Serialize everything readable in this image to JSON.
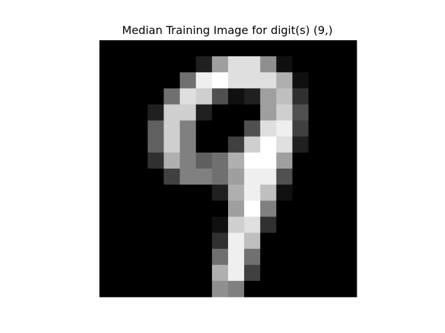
{
  "chart_data": {
    "type": "heatmap",
    "title": "Median Training Image for digit(s) (9,)",
    "colormap": "gray",
    "value_range": [
      0,
      16
    ],
    "rows": 16,
    "cols": 16,
    "values": [
      [
        0,
        0,
        0,
        0,
        0,
        0,
        0,
        0,
        0,
        0,
        0,
        0,
        0,
        0,
        0,
        0
      ],
      [
        0,
        0,
        0,
        0,
        0,
        0,
        2,
        10,
        14,
        14,
        9,
        1,
        0,
        0,
        0,
        0
      ],
      [
        0,
        0,
        0,
        0,
        0,
        7,
        15,
        16,
        14,
        14,
        14,
        11,
        1,
        0,
        0,
        0
      ],
      [
        0,
        0,
        0,
        0,
        7,
        14,
        13,
        5,
        1,
        2,
        10,
        12,
        3,
        0,
        0,
        0
      ],
      [
        0,
        0,
        0,
        2,
        13,
        13,
        2,
        0,
        0,
        0,
        10,
        13,
        5,
        0,
        0,
        0
      ],
      [
        0,
        0,
        0,
        6,
        13,
        8,
        0,
        0,
        0,
        5,
        14,
        15,
        4,
        0,
        0,
        0
      ],
      [
        0,
        0,
        0,
        6,
        13,
        8,
        0,
        0,
        4,
        13,
        16,
        14,
        2,
        0,
        0,
        0
      ],
      [
        0,
        0,
        0,
        3,
        11,
        8,
        6,
        7,
        11,
        16,
        16,
        10,
        0,
        0,
        0,
        0
      ],
      [
        0,
        0,
        0,
        0,
        4,
        8,
        8,
        7,
        10,
        15,
        15,
        5,
        0,
        0,
        0,
        0
      ],
      [
        0,
        0,
        0,
        0,
        0,
        0,
        0,
        2,
        11,
        15,
        12,
        1,
        0,
        0,
        0,
        0
      ],
      [
        0,
        0,
        0,
        0,
        0,
        0,
        0,
        0,
        10,
        16,
        8,
        0,
        0,
        0,
        0,
        0
      ],
      [
        0,
        0,
        0,
        0,
        0,
        0,
        0,
        1,
        13,
        14,
        3,
        0,
        0,
        0,
        0,
        0
      ],
      [
        0,
        0,
        0,
        0,
        0,
        0,
        0,
        3,
        15,
        12,
        0,
        0,
        0,
        0,
        0,
        0
      ],
      [
        0,
        0,
        0,
        0,
        0,
        0,
        0,
        7,
        15,
        7,
        0,
        0,
        0,
        0,
        0,
        0
      ],
      [
        0,
        0,
        0,
        0,
        0,
        0,
        0,
        11,
        15,
        4,
        0,
        0,
        0,
        0,
        0,
        0
      ],
      [
        0,
        0,
        0,
        0,
        0,
        0,
        0,
        9,
        8,
        0,
        0,
        0,
        0,
        0,
        0,
        0
      ]
    ]
  }
}
